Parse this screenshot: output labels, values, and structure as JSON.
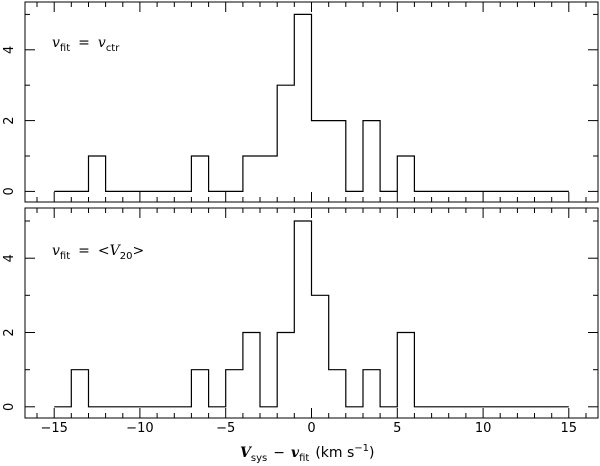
{
  "chart_data": [
    {
      "type": "histogram",
      "annotation": {
        "lhs": "v",
        "lhs_sub": "fit",
        "eq": "=",
        "rhs": "v",
        "rhs_sub": "ctr"
      },
      "bin_width": 1,
      "bins": [
        [
          -15,
          0
        ],
        [
          -14,
          0
        ],
        [
          -13,
          1
        ],
        [
          -12,
          0
        ],
        [
          -11,
          0
        ],
        [
          -10,
          0
        ],
        [
          -9,
          0
        ],
        [
          -8,
          0
        ],
        [
          -7,
          1
        ],
        [
          -6,
          0
        ],
        [
          -5,
          0
        ],
        [
          -4,
          1
        ],
        [
          -3,
          1
        ],
        [
          -2,
          3
        ],
        [
          -1,
          5
        ],
        [
          0,
          2
        ],
        [
          1,
          2
        ],
        [
          2,
          0
        ],
        [
          3,
          2
        ],
        [
          4,
          0
        ],
        [
          5,
          1
        ],
        [
          6,
          0
        ],
        [
          7,
          0
        ],
        [
          8,
          0
        ],
        [
          9,
          0
        ],
        [
          10,
          0
        ],
        [
          11,
          0
        ],
        [
          12,
          0
        ],
        [
          13,
          0
        ],
        [
          14,
          0
        ]
      ],
      "xlim": [
        -16.7,
        16.7
      ],
      "ylim": [
        -0.3,
        5.35
      ],
      "x_ticks": [
        -15,
        -10,
        -5,
        0,
        5,
        10,
        15
      ],
      "y_ticks": [
        0,
        2,
        4
      ],
      "y_tick_labels": [
        "0",
        "2",
        "4"
      ]
    },
    {
      "type": "histogram",
      "annotation": {
        "lhs": "v",
        "lhs_sub": "fit",
        "eq": "=",
        "rhs": "<V",
        "rhs_sub": "20",
        "rhs_close": ">"
      },
      "bin_width": 1,
      "bins": [
        [
          -15,
          0
        ],
        [
          -14,
          1
        ],
        [
          -13,
          0
        ],
        [
          -12,
          0
        ],
        [
          -11,
          0
        ],
        [
          -10,
          0
        ],
        [
          -9,
          0
        ],
        [
          -8,
          0
        ],
        [
          -7,
          1
        ],
        [
          -6,
          0
        ],
        [
          -5,
          1
        ],
        [
          -4,
          2
        ],
        [
          -3,
          0
        ],
        [
          -2,
          2
        ],
        [
          -1,
          5
        ],
        [
          0,
          3
        ],
        [
          1,
          1
        ],
        [
          2,
          0
        ],
        [
          3,
          1
        ],
        [
          4,
          0
        ],
        [
          5,
          2
        ],
        [
          6,
          0
        ],
        [
          7,
          0
        ],
        [
          8,
          0
        ],
        [
          9,
          0
        ],
        [
          10,
          0
        ],
        [
          11,
          0
        ],
        [
          12,
          0
        ],
        [
          13,
          0
        ],
        [
          14,
          0
        ]
      ],
      "xlim": [
        -16.7,
        16.7
      ],
      "ylim": [
        -0.3,
        5.35
      ],
      "x_ticks": [
        -15,
        -10,
        -5,
        0,
        5,
        10,
        15
      ],
      "x_tick_labels": [
        "−15",
        "−10",
        "−5",
        "0",
        "5",
        "10",
        "15"
      ],
      "y_ticks": [
        0,
        2,
        4
      ],
      "y_tick_labels": [
        "0",
        "2",
        "4"
      ]
    }
  ],
  "xlabel": {
    "v": "V",
    "v_sub": "sys",
    "minus": "−",
    "f": "v",
    "f_sub": "fit",
    "units": "(km s",
    "units_sup": "−1",
    "units_close": ")"
  }
}
